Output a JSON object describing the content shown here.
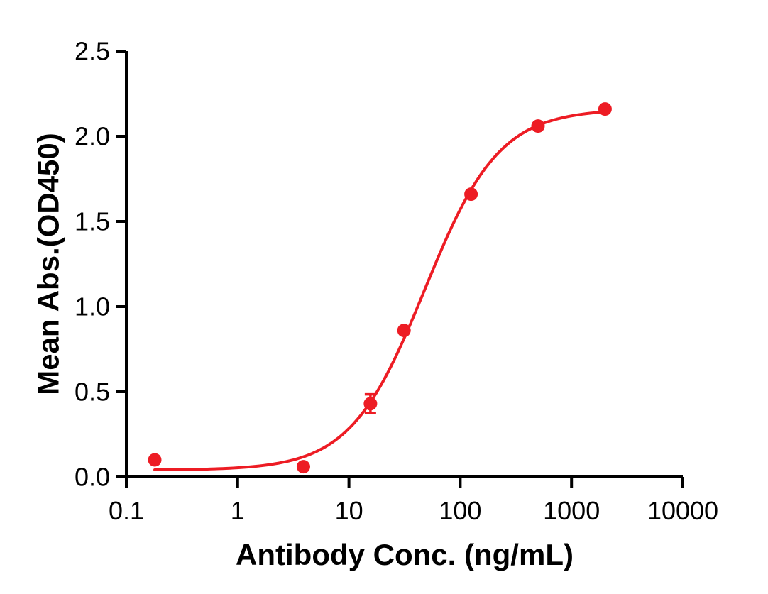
{
  "chart_data": {
    "type": "scatter",
    "title": "",
    "xlabel": "Antibody Conc. (ng/mL)",
    "ylabel": "Mean Abs.(OD450)",
    "x_scale": "log",
    "xlim": [
      0.1,
      10000
    ],
    "ylim": [
      0.0,
      2.5
    ],
    "x_ticks": [
      0.1,
      1,
      10,
      100,
      1000,
      10000
    ],
    "x_tick_labels": [
      "0.1",
      "1",
      "10",
      "100",
      "1000",
      "10000"
    ],
    "y_ticks": [
      0.0,
      0.5,
      1.0,
      1.5,
      2.0,
      2.5
    ],
    "y_tick_labels": [
      "0.0",
      "0.5",
      "1.0",
      "1.5",
      "2.0",
      "2.5"
    ],
    "grid": false,
    "legend": false,
    "axis_color": "#000000",
    "background_color": "#ffffff",
    "series": [
      {
        "name": "Mean Abs.(OD450)",
        "color": "#ED1C24",
        "marker": "circle",
        "points": [
          {
            "x": 0.18,
            "y": 0.1
          },
          {
            "x": 3.9,
            "y": 0.06
          },
          {
            "x": 15.6,
            "y": 0.43,
            "error": 0.055
          },
          {
            "x": 31.25,
            "y": 0.86
          },
          {
            "x": 125,
            "y": 1.66
          },
          {
            "x": 500,
            "y": 2.06
          },
          {
            "x": 2000,
            "y": 2.16
          }
        ],
        "fit": {
          "type": "4PL",
          "bottom": 0.04,
          "top": 2.16,
          "ec50": 48,
          "hill": 1.3,
          "x_start": 0.18,
          "x_end": 2000
        }
      }
    ]
  }
}
